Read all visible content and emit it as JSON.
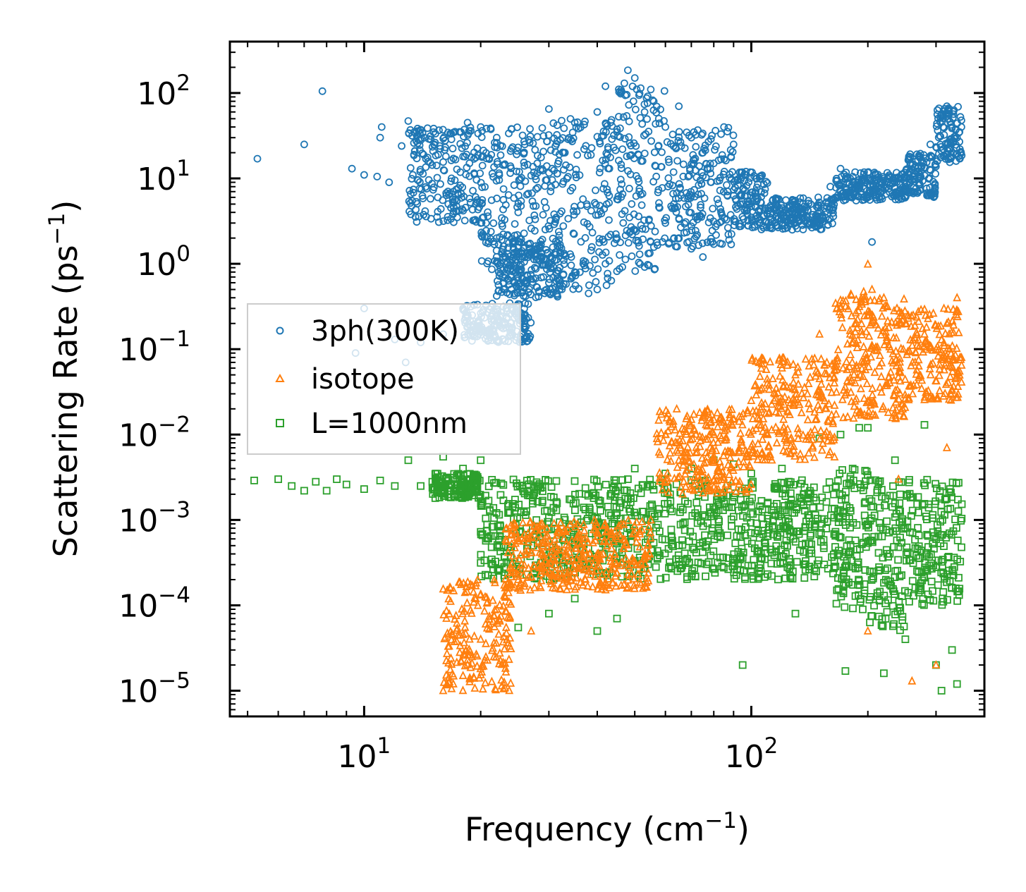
{
  "chart_data": {
    "type": "scatter",
    "xscale": "log",
    "yscale": "log",
    "xlim": [
      4.5,
      400
    ],
    "ylim": [
      5e-06,
      400
    ],
    "xlabel": {
      "text": "Frequency (cm",
      "sup": "−1",
      "close": ")"
    },
    "ylabel": {
      "text": "Scattering Rate (ps",
      "sup": "−1",
      "close": ")"
    },
    "x_ticks": [
      {
        "value": 10,
        "base": "10",
        "exp": "1"
      },
      {
        "value": 100,
        "base": "10",
        "exp": "2"
      }
    ],
    "y_ticks": [
      {
        "value": 100,
        "base": "10",
        "exp": "2"
      },
      {
        "value": 10,
        "base": "10",
        "exp": "1"
      },
      {
        "value": 1,
        "base": "10",
        "exp": "0"
      },
      {
        "value": 0.1,
        "base": "10",
        "exp": "−1"
      },
      {
        "value": 0.01,
        "base": "10",
        "exp": "−2"
      },
      {
        "value": 0.001,
        "base": "10",
        "exp": "−3"
      },
      {
        "value": 0.0001,
        "base": "10",
        "exp": "−4"
      },
      {
        "value": 1e-05,
        "base": "10",
        "exp": "−5"
      }
    ],
    "legend_position": "center-left",
    "series": [
      {
        "name": "3ph(300K)",
        "marker": "circle",
        "color": "#1f77b4",
        "points": [
          [
            5.3,
            17
          ],
          [
            7.0,
            25
          ],
          [
            7.8,
            105
          ],
          [
            9.3,
            13
          ],
          [
            10.0,
            11
          ],
          [
            10.8,
            10.5
          ],
          [
            11.0,
            30
          ],
          [
            11.1,
            40
          ],
          [
            11.6,
            9
          ],
          [
            12.5,
            24
          ],
          [
            13.0,
            47
          ],
          [
            13.4,
            6.8
          ],
          [
            14.0,
            28
          ],
          [
            15.5,
            6
          ],
          [
            16.5,
            5
          ],
          [
            17.0,
            7
          ],
          [
            18.5,
            45
          ],
          [
            20.0,
            40
          ],
          [
            22.0,
            30
          ],
          [
            24.0,
            38
          ],
          [
            26.0,
            25
          ],
          [
            28.0,
            15
          ],
          [
            30.0,
            65
          ],
          [
            33.0,
            20
          ],
          [
            35.0,
            45
          ],
          [
            37.0,
            22
          ],
          [
            40.0,
            60
          ],
          [
            42.0,
            120
          ],
          [
            45.0,
            35
          ],
          [
            47.0,
            130
          ],
          [
            48.0,
            185
          ],
          [
            50.0,
            150
          ],
          [
            53.0,
            60
          ],
          [
            55.0,
            110
          ],
          [
            60.0,
            40
          ],
          [
            65.0,
            70
          ],
          [
            70.0,
            30
          ],
          [
            75.0,
            20
          ],
          [
            80.0,
            15
          ],
          [
            85.0,
            40
          ],
          [
            90.0,
            25
          ],
          [
            95.0,
            5
          ],
          [
            100.0,
            3.5
          ],
          [
            110.0,
            3.8
          ],
          [
            120.0,
            4.5
          ],
          [
            130.0,
            5.5
          ],
          [
            140.0,
            4.2
          ],
          [
            150.0,
            3.0
          ],
          [
            160.0,
            8.0
          ],
          [
            170.0,
            13
          ],
          [
            180.0,
            10
          ],
          [
            190.0,
            8.5
          ],
          [
            200.0,
            10
          ],
          [
            205.0,
            1.8
          ],
          [
            210.0,
            11
          ],
          [
            220.0,
            10
          ],
          [
            250.0,
            8
          ],
          [
            270.0,
            12
          ],
          [
            290.0,
            25
          ],
          [
            310.0,
            55
          ],
          [
            320.0,
            70
          ],
          [
            330.0,
            40
          ],
          [
            340.0,
            30
          ],
          [
            345.0,
            35
          ],
          [
            20.0,
            3
          ],
          [
            22.0,
            2
          ],
          [
            25.0,
            4
          ],
          [
            28.0,
            1.5
          ],
          [
            30.0,
            0.6
          ],
          [
            32.0,
            0.5
          ],
          [
            35.0,
            0.8
          ],
          [
            38.0,
            0.45
          ],
          [
            40.0,
            0.5
          ],
          [
            42.0,
            1.0
          ],
          [
            45.0,
            2.0
          ],
          [
            50.0,
            2.5
          ],
          [
            55.0,
            1.8
          ],
          [
            60.0,
            3.0
          ],
          [
            65.0,
            2.0
          ],
          [
            70.0,
            1.5
          ],
          [
            75.0,
            1.2
          ],
          [
            80.0,
            1.7
          ],
          [
            25.0,
            0.7
          ],
          [
            24.0,
            0.5
          ],
          [
            22.0,
            0.42
          ],
          [
            18.0,
            0.3
          ],
          [
            16.0,
            0.15
          ],
          [
            14.0,
            0.12
          ],
          [
            12.0,
            0.13
          ],
          [
            10.0,
            0.3
          ],
          [
            9.5,
            0.09
          ],
          [
            12.8,
            0.07
          ],
          [
            23.0,
            0.2
          ],
          [
            25.5,
            0.25
          ],
          [
            26.0,
            0.17
          ]
        ],
        "bands": [
          [
            20,
            30,
            0.8,
            40
          ],
          [
            30,
            45,
            0.5,
            50
          ],
          [
            45,
            60,
            0.8,
            120
          ],
          [
            60,
            90,
            1.5,
            40
          ],
          [
            90,
            110,
            2.5,
            12
          ],
          [
            110,
            165,
            2.5,
            6
          ],
          [
            165,
            250,
            5.5,
            12
          ],
          [
            250,
            300,
            6,
            20
          ],
          [
            300,
            350,
            15,
            70
          ],
          [
            13,
            20,
            3,
            40
          ],
          [
            22,
            33,
            0.4,
            2
          ],
          [
            18,
            27,
            0.12,
            0.35
          ]
        ]
      },
      {
        "name": "isotope",
        "marker": "triangle",
        "color": "#ff7f0e",
        "points": [
          [
            16.0,
            1e-05
          ],
          [
            17.0,
            1.2e-05
          ],
          [
            18.0,
            1.5e-05
          ],
          [
            19.0,
            2.5e-05
          ],
          [
            20.0,
            4e-05
          ],
          [
            21.0,
            6e-05
          ],
          [
            22.0,
            9e-05
          ],
          [
            23.0,
            0.00013
          ],
          [
            25.0,
            0.0002
          ],
          [
            27.0,
            5e-05
          ],
          [
            30.0,
            0.00025
          ],
          [
            35.0,
            0.0003
          ],
          [
            40.0,
            0.0004
          ],
          [
            45.0,
            0.0006
          ],
          [
            50.0,
            0.0007
          ],
          [
            55.0,
            0.001
          ],
          [
            60.0,
            0.01
          ],
          [
            65.0,
            0.005
          ],
          [
            70.0,
            0.015
          ],
          [
            80.0,
            0.01
          ],
          [
            90.0,
            0.015
          ],
          [
            100.0,
            0.025
          ],
          [
            110.0,
            0.04
          ],
          [
            120.0,
            0.06
          ],
          [
            130.0,
            0.05
          ],
          [
            150.0,
            0.15
          ],
          [
            170.0,
            0.3
          ],
          [
            180.0,
            0.15
          ],
          [
            200.0,
            0.99
          ],
          [
            205.0,
            0.5
          ],
          [
            220.0,
            0.4
          ],
          [
            250.0,
            0.2
          ],
          [
            280.0,
            0.15
          ],
          [
            300.0,
            0.1
          ],
          [
            320.0,
            0.2
          ],
          [
            340.0,
            0.4
          ],
          [
            260.0,
            1.3e-05
          ],
          [
            300.0,
            2e-05
          ],
          [
            200.0,
            5e-05
          ],
          [
            240.0,
            0.003
          ],
          [
            320.0,
            0.007
          ]
        ],
        "bands": [
          [
            16,
            24,
            1e-05,
            0.0002
          ],
          [
            23,
            55,
            0.00015,
            0.001
          ],
          [
            57,
            100,
            0.002,
            0.02
          ],
          [
            100,
            165,
            0.005,
            0.08
          ],
          [
            165,
            205,
            0.015,
            0.5
          ],
          [
            205,
            250,
            0.015,
            0.4
          ],
          [
            250,
            350,
            0.025,
            0.3
          ]
        ]
      },
      {
        "name": "L=1000nm",
        "marker": "square",
        "color": "#2ca02c",
        "points": [
          [
            5.2,
            0.0029
          ],
          [
            6.0,
            0.003
          ],
          [
            6.5,
            0.0025
          ],
          [
            7.0,
            0.0022
          ],
          [
            7.5,
            0.0028
          ],
          [
            8.0,
            0.0022
          ],
          [
            8.5,
            0.003
          ],
          [
            9.0,
            0.0026
          ],
          [
            10.0,
            0.0023
          ],
          [
            11.0,
            0.0029
          ],
          [
            12.0,
            0.0025
          ],
          [
            13.0,
            0.005
          ],
          [
            14.0,
            0.0025
          ],
          [
            15.0,
            0.0028
          ],
          [
            16.0,
            0.0055
          ],
          [
            18.0,
            0.004
          ],
          [
            20.0,
            0.005
          ],
          [
            25.0,
            5.5e-05
          ],
          [
            30.0,
            8e-05
          ],
          [
            35.0,
            0.00012
          ],
          [
            40.0,
            5e-05
          ],
          [
            45.0,
            7e-05
          ],
          [
            48.0,
            0.003
          ],
          [
            50.0,
            0.004
          ],
          [
            60.0,
            0.0035
          ],
          [
            70.0,
            0.004
          ],
          [
            80.0,
            0.005
          ],
          [
            90.0,
            0.0045
          ],
          [
            95.0,
            2e-05
          ],
          [
            100.0,
            0.0035
          ],
          [
            120.0,
            0.004
          ],
          [
            130.0,
            8e-05
          ],
          [
            150.0,
            0.009
          ],
          [
            170.0,
            0.01
          ],
          [
            175.0,
            1.7e-05
          ],
          [
            190.0,
            0.012
          ],
          [
            200.0,
            0.012
          ],
          [
            220.0,
            1.6e-05
          ],
          [
            235.0,
            0.005
          ],
          [
            250.0,
            4e-05
          ],
          [
            280.0,
            0.013
          ],
          [
            300.0,
            2e-05
          ],
          [
            310.0,
            1e-05
          ],
          [
            330.0,
            3e-05
          ],
          [
            340.0,
            1.2e-05
          ]
        ],
        "bands": [
          [
            15,
            20,
            0.0018,
            0.0035
          ],
          [
            20,
            60,
            0.0002,
            0.003
          ],
          [
            60,
            165,
            0.0002,
            0.003
          ],
          [
            165,
            200,
            8e-05,
            0.004
          ],
          [
            200,
            250,
            5e-05,
            0.003
          ],
          [
            250,
            350,
            0.0001,
            0.003
          ]
        ]
      }
    ]
  }
}
